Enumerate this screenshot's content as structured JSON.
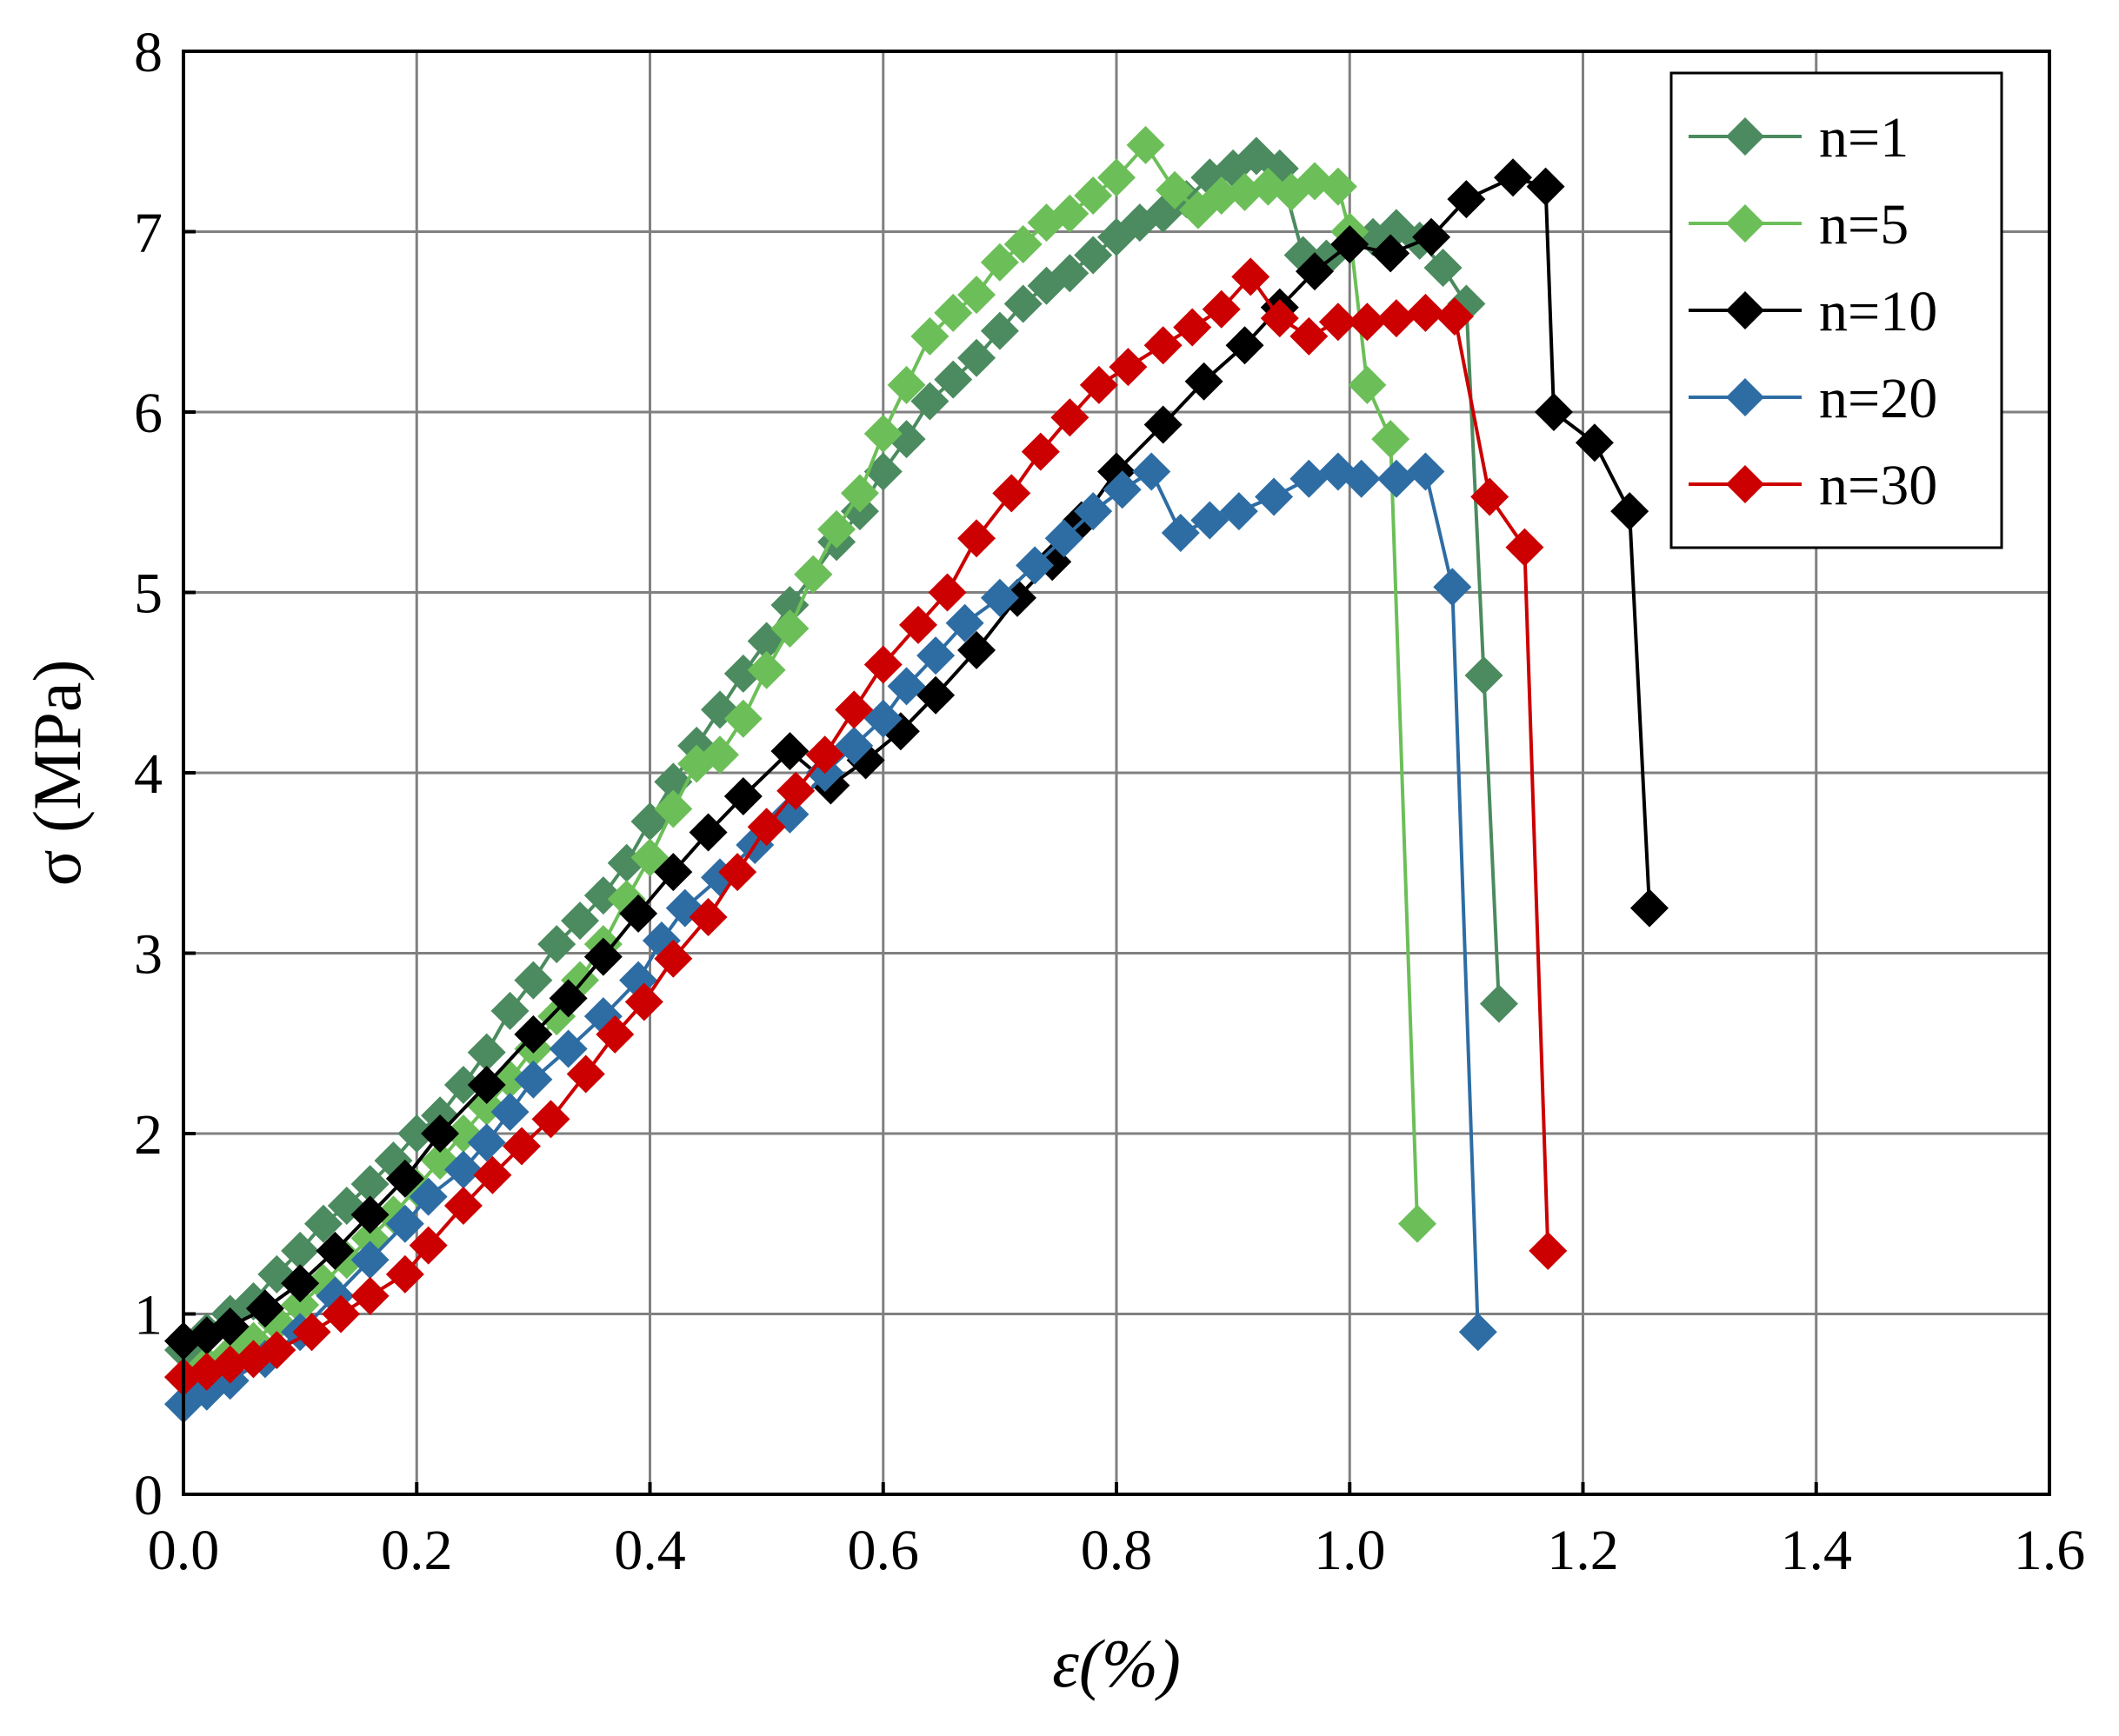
{
  "chart_data": {
    "type": "line",
    "xlabel": "ε(%)",
    "ylabel": "σ (MPa)",
    "xlim": [
      0.0,
      1.6
    ],
    "ylim": [
      0,
      8
    ],
    "x_ticks": [
      "0.0",
      "0.2",
      "0.4",
      "0.6",
      "0.8",
      "1.0",
      "1.2",
      "1.4",
      "1.6"
    ],
    "y_ticks": [
      "0",
      "1",
      "2",
      "3",
      "4",
      "5",
      "6",
      "7",
      "8"
    ],
    "grid": true,
    "legend_position": "top-right",
    "marker": "diamond",
    "series": [
      {
        "name": "n=1",
        "color": "#4b8b5f",
        "points": [
          [
            0.0,
            0.8
          ],
          [
            0.02,
            0.9
          ],
          [
            0.04,
            1.0
          ],
          [
            0.06,
            1.07
          ],
          [
            0.08,
            1.22
          ],
          [
            0.1,
            1.35
          ],
          [
            0.12,
            1.5
          ],
          [
            0.14,
            1.6
          ],
          [
            0.16,
            1.72
          ],
          [
            0.18,
            1.85
          ],
          [
            0.2,
            2.0
          ],
          [
            0.22,
            2.1
          ],
          [
            0.24,
            2.27
          ],
          [
            0.26,
            2.45
          ],
          [
            0.28,
            2.68
          ],
          [
            0.3,
            2.85
          ],
          [
            0.32,
            3.05
          ],
          [
            0.34,
            3.18
          ],
          [
            0.36,
            3.32
          ],
          [
            0.38,
            3.5
          ],
          [
            0.4,
            3.73
          ],
          [
            0.42,
            3.95
          ],
          [
            0.44,
            4.15
          ],
          [
            0.46,
            4.35
          ],
          [
            0.48,
            4.55
          ],
          [
            0.5,
            4.73
          ],
          [
            0.52,
            4.93
          ],
          [
            0.54,
            5.1
          ],
          [
            0.56,
            5.28
          ],
          [
            0.58,
            5.45
          ],
          [
            0.6,
            5.67
          ],
          [
            0.62,
            5.85
          ],
          [
            0.64,
            6.06
          ],
          [
            0.66,
            6.18
          ],
          [
            0.68,
            6.3
          ],
          [
            0.7,
            6.45
          ],
          [
            0.72,
            6.6
          ],
          [
            0.74,
            6.7
          ],
          [
            0.76,
            6.77
          ],
          [
            0.78,
            6.87
          ],
          [
            0.8,
            6.97
          ],
          [
            0.82,
            7.05
          ],
          [
            0.84,
            7.1
          ],
          [
            0.86,
            7.18
          ],
          [
            0.88,
            7.3
          ],
          [
            0.9,
            7.35
          ],
          [
            0.92,
            7.42
          ],
          [
            0.94,
            7.35
          ],
          [
            0.96,
            6.87
          ],
          [
            0.98,
            6.85
          ],
          [
            1.0,
            6.93
          ],
          [
            1.02,
            6.97
          ],
          [
            1.04,
            7.02
          ],
          [
            1.06,
            6.95
          ],
          [
            1.08,
            6.8
          ],
          [
            1.1,
            6.6
          ],
          [
            1.115,
            4.54
          ],
          [
            1.128,
            2.72
          ]
        ]
      },
      {
        "name": "n=5",
        "color": "#6cbf58",
        "points": [
          [
            0.0,
            0.65
          ],
          [
            0.02,
            0.72
          ],
          [
            0.04,
            0.78
          ],
          [
            0.06,
            0.85
          ],
          [
            0.08,
            0.95
          ],
          [
            0.1,
            1.05
          ],
          [
            0.12,
            1.17
          ],
          [
            0.14,
            1.3
          ],
          [
            0.16,
            1.42
          ],
          [
            0.18,
            1.55
          ],
          [
            0.2,
            1.7
          ],
          [
            0.22,
            1.85
          ],
          [
            0.24,
            2.0
          ],
          [
            0.26,
            2.15
          ],
          [
            0.28,
            2.3
          ],
          [
            0.3,
            2.47
          ],
          [
            0.32,
            2.65
          ],
          [
            0.34,
            2.85
          ],
          [
            0.36,
            3.05
          ],
          [
            0.38,
            3.3
          ],
          [
            0.4,
            3.53
          ],
          [
            0.42,
            3.8
          ],
          [
            0.44,
            4.05
          ],
          [
            0.46,
            4.1
          ],
          [
            0.48,
            4.3
          ],
          [
            0.5,
            4.57
          ],
          [
            0.52,
            4.8
          ],
          [
            0.54,
            5.1
          ],
          [
            0.56,
            5.35
          ],
          [
            0.58,
            5.55
          ],
          [
            0.6,
            5.88
          ],
          [
            0.62,
            6.15
          ],
          [
            0.64,
            6.42
          ],
          [
            0.66,
            6.55
          ],
          [
            0.68,
            6.65
          ],
          [
            0.7,
            6.83
          ],
          [
            0.72,
            6.93
          ],
          [
            0.74,
            7.05
          ],
          [
            0.76,
            7.1
          ],
          [
            0.78,
            7.2
          ],
          [
            0.8,
            7.3
          ],
          [
            0.825,
            7.48
          ],
          [
            0.85,
            7.23
          ],
          [
            0.87,
            7.12
          ],
          [
            0.89,
            7.2
          ],
          [
            0.91,
            7.22
          ],
          [
            0.93,
            7.25
          ],
          [
            0.95,
            7.22
          ],
          [
            0.97,
            7.28
          ],
          [
            0.99,
            7.25
          ],
          [
            1.0,
            7.0
          ],
          [
            1.015,
            6.15
          ],
          [
            1.035,
            5.85
          ],
          [
            1.058,
            1.5
          ]
        ]
      },
      {
        "name": "n=10",
        "color": "#000000",
        "points": [
          [
            0.0,
            0.85
          ],
          [
            0.02,
            0.88
          ],
          [
            0.04,
            0.93
          ],
          [
            0.07,
            1.03
          ],
          [
            0.1,
            1.17
          ],
          [
            0.13,
            1.35
          ],
          [
            0.16,
            1.55
          ],
          [
            0.19,
            1.75
          ],
          [
            0.22,
            2.0
          ],
          [
            0.26,
            2.27
          ],
          [
            0.3,
            2.55
          ],
          [
            0.33,
            2.75
          ],
          [
            0.36,
            2.98
          ],
          [
            0.39,
            3.22
          ],
          [
            0.42,
            3.45
          ],
          [
            0.45,
            3.67
          ],
          [
            0.48,
            3.87
          ],
          [
            0.52,
            4.12
          ],
          [
            0.555,
            3.93
          ],
          [
            0.585,
            4.07
          ],
          [
            0.615,
            4.23
          ],
          [
            0.645,
            4.43
          ],
          [
            0.68,
            4.68
          ],
          [
            0.715,
            4.97
          ],
          [
            0.745,
            5.17
          ],
          [
            0.77,
            5.4
          ],
          [
            0.8,
            5.67
          ],
          [
            0.84,
            5.93
          ],
          [
            0.875,
            6.17
          ],
          [
            0.91,
            6.37
          ],
          [
            0.94,
            6.58
          ],
          [
            0.97,
            6.78
          ],
          [
            1.0,
            6.93
          ],
          [
            1.035,
            6.88
          ],
          [
            1.07,
            6.97
          ],
          [
            1.1,
            7.18
          ],
          [
            1.14,
            7.3
          ],
          [
            1.168,
            7.25
          ],
          [
            1.175,
            6.0
          ],
          [
            1.21,
            5.83
          ],
          [
            1.24,
            5.45
          ],
          [
            1.257,
            3.25
          ]
        ]
      },
      {
        "name": "n=20",
        "color": "#2e6da4",
        "points": [
          [
            0.0,
            0.5
          ],
          [
            0.02,
            0.57
          ],
          [
            0.04,
            0.63
          ],
          [
            0.07,
            0.75
          ],
          [
            0.1,
            0.9
          ],
          [
            0.13,
            1.1
          ],
          [
            0.16,
            1.3
          ],
          [
            0.19,
            1.5
          ],
          [
            0.21,
            1.65
          ],
          [
            0.24,
            1.8
          ],
          [
            0.26,
            1.95
          ],
          [
            0.28,
            2.12
          ],
          [
            0.3,
            2.3
          ],
          [
            0.33,
            2.47
          ],
          [
            0.36,
            2.65
          ],
          [
            0.39,
            2.85
          ],
          [
            0.41,
            3.07
          ],
          [
            0.43,
            3.25
          ],
          [
            0.46,
            3.42
          ],
          [
            0.49,
            3.6
          ],
          [
            0.52,
            3.77
          ],
          [
            0.55,
            4.0
          ],
          [
            0.575,
            4.15
          ],
          [
            0.6,
            4.3
          ],
          [
            0.62,
            4.48
          ],
          [
            0.645,
            4.65
          ],
          [
            0.67,
            4.83
          ],
          [
            0.7,
            4.97
          ],
          [
            0.73,
            5.15
          ],
          [
            0.755,
            5.3
          ],
          [
            0.78,
            5.45
          ],
          [
            0.805,
            5.57
          ],
          [
            0.83,
            5.67
          ],
          [
            0.855,
            5.33
          ],
          [
            0.88,
            5.4
          ],
          [
            0.905,
            5.45
          ],
          [
            0.935,
            5.53
          ],
          [
            0.965,
            5.63
          ],
          [
            0.99,
            5.67
          ],
          [
            1.01,
            5.63
          ],
          [
            1.04,
            5.63
          ],
          [
            1.065,
            5.67
          ],
          [
            1.088,
            5.03
          ],
          [
            1.11,
            0.9
          ]
        ]
      },
      {
        "name": "n=30",
        "color": "#cc0000",
        "points": [
          [
            0.0,
            0.65
          ],
          [
            0.02,
            0.68
          ],
          [
            0.04,
            0.72
          ],
          [
            0.06,
            0.75
          ],
          [
            0.08,
            0.8
          ],
          [
            0.11,
            0.9
          ],
          [
            0.135,
            1.0
          ],
          [
            0.16,
            1.1
          ],
          [
            0.19,
            1.22
          ],
          [
            0.21,
            1.38
          ],
          [
            0.24,
            1.6
          ],
          [
            0.265,
            1.77
          ],
          [
            0.29,
            1.93
          ],
          [
            0.315,
            2.08
          ],
          [
            0.345,
            2.33
          ],
          [
            0.37,
            2.55
          ],
          [
            0.395,
            2.73
          ],
          [
            0.42,
            2.97
          ],
          [
            0.45,
            3.2
          ],
          [
            0.475,
            3.45
          ],
          [
            0.5,
            3.7
          ],
          [
            0.525,
            3.9
          ],
          [
            0.55,
            4.1
          ],
          [
            0.575,
            4.35
          ],
          [
            0.6,
            4.6
          ],
          [
            0.63,
            4.82
          ],
          [
            0.655,
            5.0
          ],
          [
            0.68,
            5.3
          ],
          [
            0.71,
            5.55
          ],
          [
            0.735,
            5.78
          ],
          [
            0.76,
            5.97
          ],
          [
            0.785,
            6.15
          ],
          [
            0.81,
            6.25
          ],
          [
            0.84,
            6.37
          ],
          [
            0.865,
            6.47
          ],
          [
            0.89,
            6.57
          ],
          [
            0.915,
            6.75
          ],
          [
            0.94,
            6.52
          ],
          [
            0.965,
            6.42
          ],
          [
            0.99,
            6.5
          ],
          [
            1.015,
            6.5
          ],
          [
            1.04,
            6.52
          ],
          [
            1.065,
            6.55
          ],
          [
            1.09,
            6.53
          ],
          [
            1.12,
            5.53
          ],
          [
            1.15,
            5.25
          ],
          [
            1.17,
            1.35
          ]
        ]
      }
    ]
  }
}
